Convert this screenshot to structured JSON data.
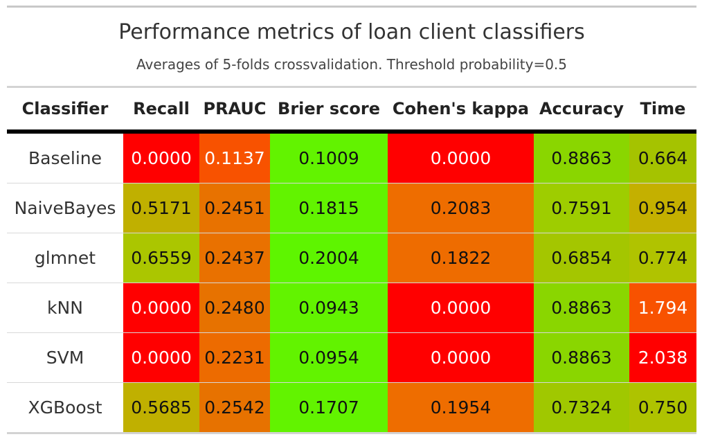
{
  "chart_data": {
    "type": "table",
    "title": "Performance metrics of loan client classifiers",
    "subtitle": "Averages of 5-folds crossvalidation. Threshold probability=0.5",
    "columns": [
      "Classifier",
      "Recall",
      "PRAUC",
      "Brier score",
      "Cohen's kappa",
      "Accuracy",
      "Time"
    ],
    "rows": [
      {
        "cells": [
          "Baseline",
          "0.0000",
          "0.1137",
          "0.1009",
          "0.0000",
          "0.8863",
          "0.664"
        ],
        "colors": [
          "#ffffff",
          "#ff0000",
          "#f85200",
          "#62f300",
          "#ff0000",
          "#8ad600",
          "#a5c300"
        ],
        "text_colors": [
          "#333333",
          "#ffffff",
          "#ffffff",
          "#111111",
          "#ffffff",
          "#111111",
          "#111111"
        ]
      },
      {
        "cells": [
          "NaiveBayes",
          "0.5171",
          "0.2451",
          "0.1815",
          "0.2083",
          "0.7591",
          "0.954"
        ],
        "colors": [
          "#ffffff",
          "#c0b000",
          "#e87200",
          "#62f300",
          "#ee6d00",
          "#9ecd00",
          "#c4b000"
        ],
        "text_colors": [
          "#333333",
          "#111111",
          "#111111",
          "#111111",
          "#111111",
          "#111111",
          "#111111"
        ]
      },
      {
        "cells": [
          "glmnet",
          "0.6559",
          "0.2437",
          "0.2004",
          "0.1822",
          "0.6854",
          "0.774"
        ],
        "colors": [
          "#ffffff",
          "#abc600",
          "#e97100",
          "#5ef500",
          "#ee6c00",
          "#a4c600",
          "#b0c300"
        ],
        "text_colors": [
          "#333333",
          "#111111",
          "#111111",
          "#111111",
          "#111111",
          "#111111",
          "#111111"
        ]
      },
      {
        "cells": [
          "kNN",
          "0.0000",
          "0.2480",
          "0.0943",
          "0.0000",
          "0.8863",
          "1.794"
        ],
        "colors": [
          "#ffffff",
          "#ff0000",
          "#e77200",
          "#62f300",
          "#ff0000",
          "#8ad600",
          "#f85200"
        ],
        "text_colors": [
          "#333333",
          "#ffffff",
          "#111111",
          "#111111",
          "#ffffff",
          "#111111",
          "#ffffff"
        ]
      },
      {
        "cells": [
          "SVM",
          "0.0000",
          "0.2231",
          "0.0954",
          "0.0000",
          "0.8863",
          "2.038"
        ],
        "colors": [
          "#ffffff",
          "#ff0000",
          "#ed6b00",
          "#62f300",
          "#ff0000",
          "#8ad600",
          "#ff0000"
        ],
        "text_colors": [
          "#333333",
          "#ffffff",
          "#111111",
          "#111111",
          "#ffffff",
          "#111111",
          "#ffffff"
        ]
      },
      {
        "cells": [
          "XGBoost",
          "0.5685",
          "0.2542",
          "0.1707",
          "0.1954",
          "0.7324",
          "0.750"
        ],
        "colors": [
          "#ffffff",
          "#c0b000",
          "#e77200",
          "#62f300",
          "#ee6d00",
          "#a0c800",
          "#aec300"
        ],
        "text_colors": [
          "#333333",
          "#111111",
          "#111111",
          "#111111",
          "#111111",
          "#111111",
          "#111111"
        ]
      }
    ]
  }
}
